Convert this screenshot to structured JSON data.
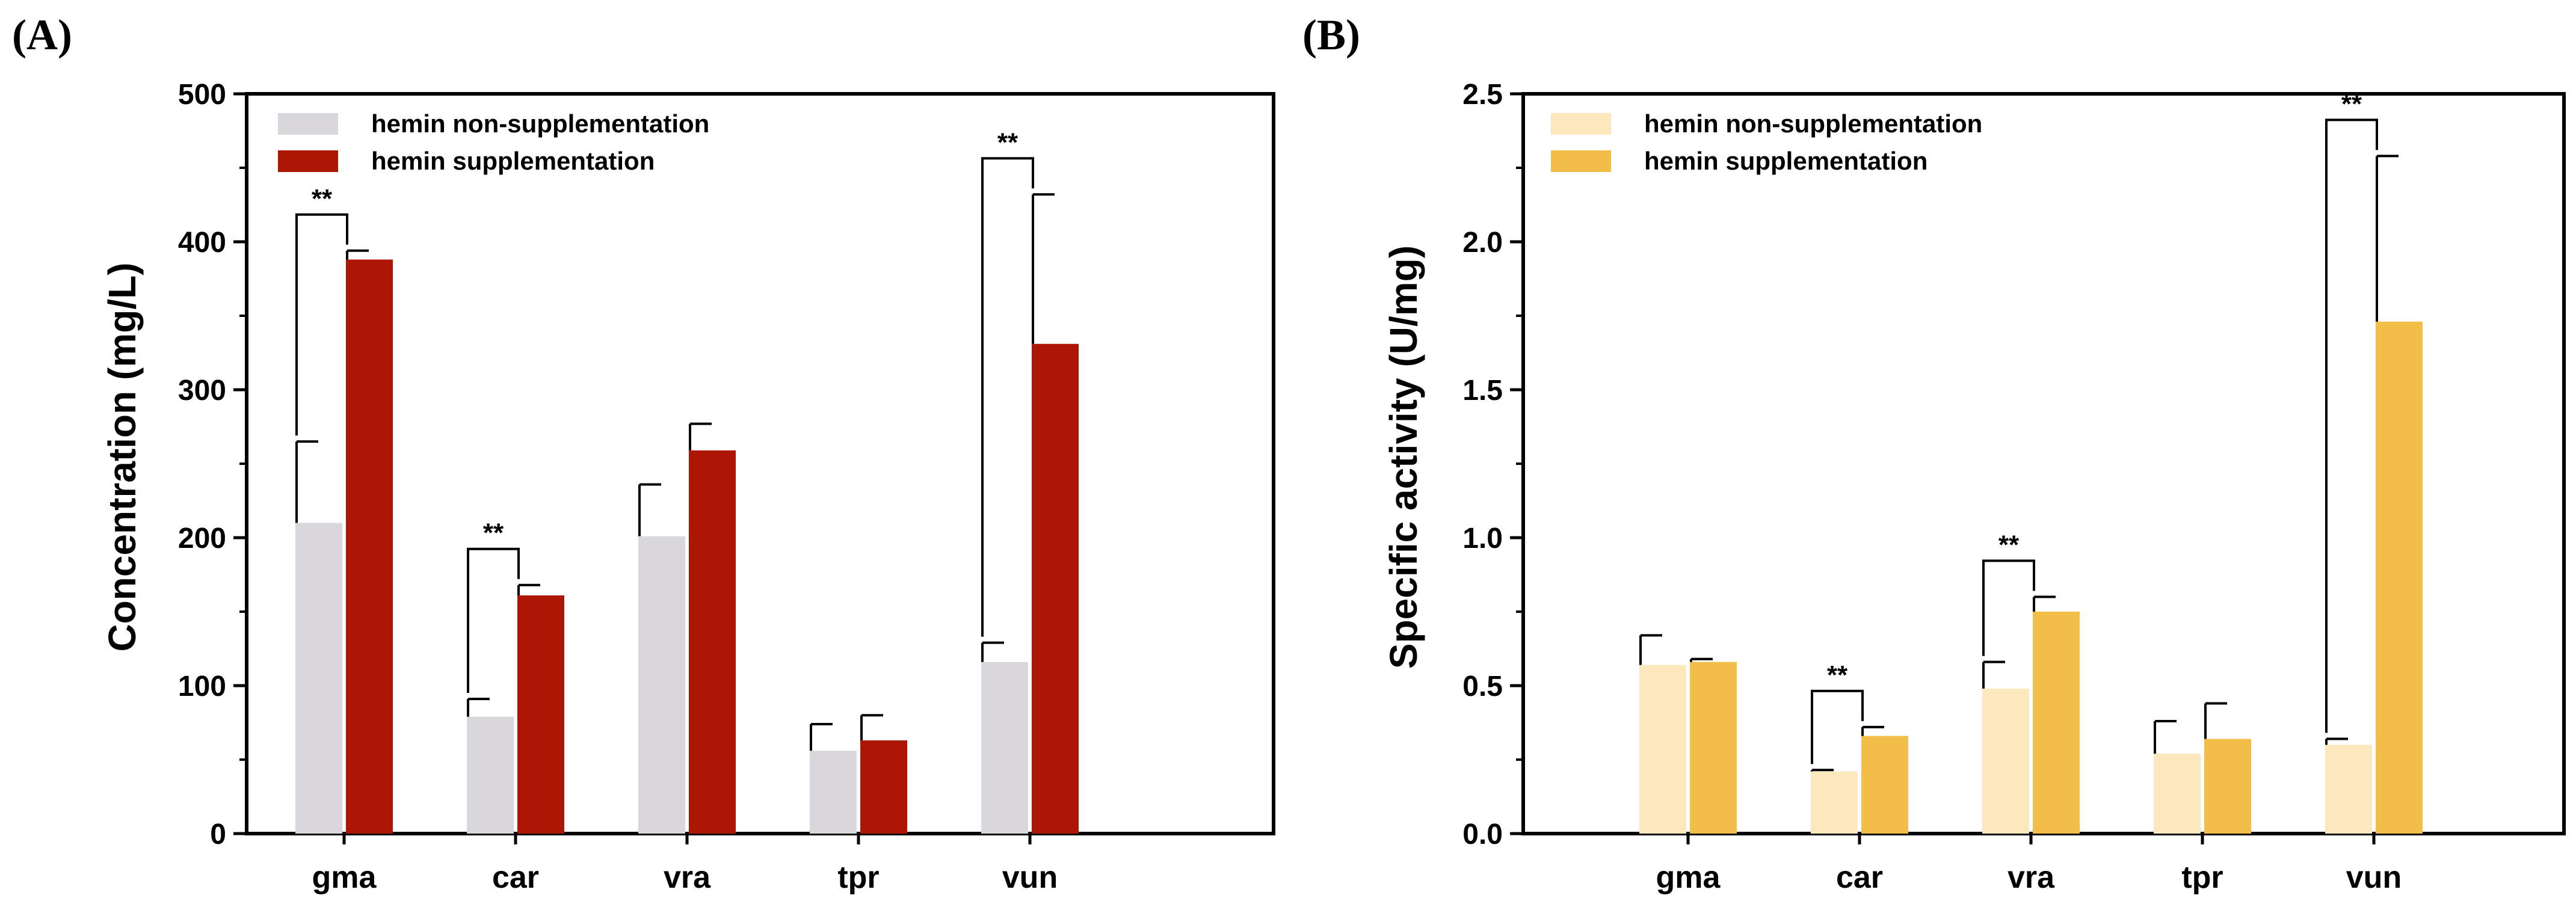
{
  "chart_data": [
    {
      "panel": "(A)",
      "type": "bar",
      "ylabel": "Concentration (mg/L)",
      "xlabel": "",
      "ylim": [
        0,
        500
      ],
      "yticks": [
        0,
        100,
        200,
        300,
        400,
        500
      ],
      "categories": [
        "gma",
        "car",
        "vra",
        "tpr",
        "vun"
      ],
      "series": [
        {
          "name": "hemin non-supplementation",
          "color": "#d9d7dc",
          "values": [
            210,
            79,
            201,
            56,
            116
          ],
          "errors": [
            55,
            12,
            35,
            18,
            13
          ]
        },
        {
          "name": "hemin supplementation",
          "color": "#ac1705",
          "values": [
            388,
            161,
            259,
            63,
            331
          ],
          "errors": [
            6,
            7,
            18,
            17,
            101
          ]
        }
      ],
      "significance": [
        {
          "category": "gma",
          "label": "**"
        },
        {
          "category": "car",
          "label": "**"
        },
        {
          "category": "vun",
          "label": "**"
        }
      ],
      "legend_position": "top-left"
    },
    {
      "panel": "(B)",
      "type": "bar",
      "ylabel": "Specific activity (U/mg)",
      "xlabel": "",
      "ylim": [
        0,
        2.5
      ],
      "yticks": [
        "0.0",
        "0.5",
        "1.0",
        "1.5",
        "2.0",
        "2.5"
      ],
      "categories": [
        "gma",
        "car",
        "vra",
        "tpr",
        "vun"
      ],
      "series": [
        {
          "name": "hemin non-supplementation",
          "color": "#fbe8bd",
          "values": [
            0.57,
            0.21,
            0.49,
            0.27,
            0.3
          ],
          "errors": [
            0.1,
            0.005,
            0.09,
            0.11,
            0.02
          ]
        },
        {
          "name": "hemin supplementation",
          "color": "#f3be48",
          "values": [
            0.58,
            0.33,
            0.75,
            0.32,
            1.73
          ],
          "errors": [
            0.01,
            0.03,
            0.05,
            0.12,
            0.56
          ]
        }
      ],
      "significance": [
        {
          "category": "car",
          "label": "**"
        },
        {
          "category": "vra",
          "label": "**"
        },
        {
          "category": "vun",
          "label": "**"
        }
      ],
      "legend_position": "top-left"
    }
  ]
}
